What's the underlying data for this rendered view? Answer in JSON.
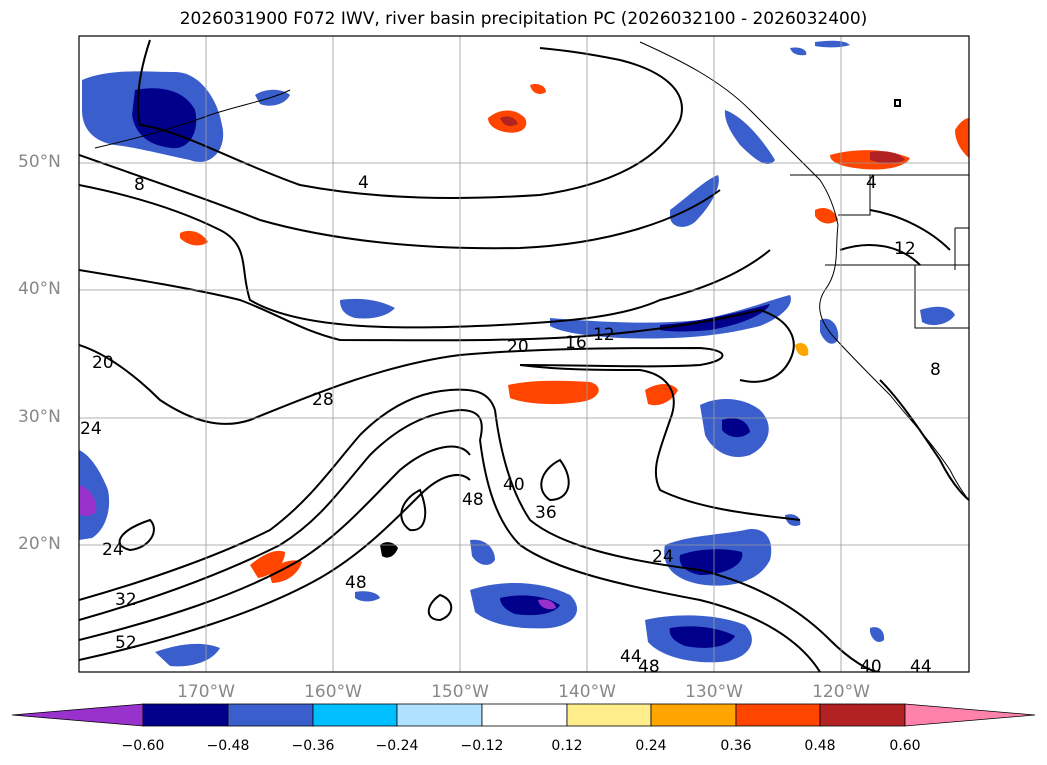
{
  "title": "2026031900 F072 IWV, river basin precipitation PC (2026032100 - 2026032400)",
  "lat_labels": [
    "50°N",
    "40°N",
    "30°N",
    "20°N"
  ],
  "lon_labels": [
    "170°W",
    "160°W",
    "150°W",
    "140°W",
    "130°W",
    "120°W"
  ],
  "colorbar": {
    "ticks": [
      "−0.60",
      "−0.48",
      "−0.36",
      "−0.24",
      "−0.12",
      "0.12",
      "0.24",
      "0.36",
      "0.48",
      "0.60"
    ],
    "colors": [
      "#9932cc",
      "#00008b",
      "#3a5fcd",
      "#00bfff",
      "#b0e2ff",
      "#ffffff",
      "#ffec8b",
      "#ffa500",
      "#ff4500",
      "#b22222",
      "#ff82ab"
    ]
  },
  "contour_labels": [
    "4",
    "8",
    "4",
    "12",
    "8",
    "12",
    "16",
    "20",
    "20",
    "24",
    "24",
    "28",
    "36",
    "40",
    "48",
    "48",
    "52",
    "32",
    "24",
    "44",
    "48",
    "40",
    "44"
  ]
}
